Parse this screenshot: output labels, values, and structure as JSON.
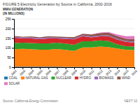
{
  "chart_data": {
    "type": "area",
    "stacked": true,
    "title": "FIGURE 5 Electricity Generation by Source in California, 2002-2016",
    "ylabel": [
      "MWH GENERATION",
      "(IN MILLIONS)"
    ],
    "x": [
      2002,
      2003,
      2004,
      2005,
      2006,
      2007,
      2008,
      2009,
      2010,
      2011,
      2012,
      2013,
      2014,
      2015,
      2016
    ],
    "series": [
      {
        "name": "COAL",
        "values": [
          3,
          3,
          3,
          3,
          3,
          2.5,
          2,
          2,
          2,
          2,
          2,
          2,
          2,
          1,
          1
        ]
      },
      {
        "name": "NATURAL GAS",
        "values": [
          90,
          92,
          90,
          88,
          88,
          92,
          88,
          82,
          100,
          100,
          105,
          102,
          95,
          90,
          88
        ]
      },
      {
        "name": "NUCLEAR",
        "values": [
          32,
          32,
          32,
          32,
          32,
          32,
          32,
          32,
          32,
          32,
          32,
          32,
          22,
          18,
          18
        ]
      },
      {
        "name": "HYDRO",
        "values": [
          28,
          22,
          24,
          22,
          26,
          22,
          24,
          28,
          26,
          20,
          20,
          24,
          24,
          22,
          20
        ]
      },
      {
        "name": "BIOMASS",
        "values": [
          5,
          5,
          5,
          5,
          5,
          5,
          5,
          5,
          5,
          5,
          5,
          5,
          5,
          5,
          5
        ]
      },
      {
        "name": "WIND",
        "values": [
          4,
          4,
          5,
          5,
          6,
          5,
          6,
          7,
          8,
          10,
          13,
          13,
          13,
          12,
          13
        ]
      },
      {
        "name": "SOLAR",
        "values": [
          0,
          0,
          0,
          0,
          0,
          0,
          0,
          0,
          0,
          1,
          2,
          4,
          8,
          12,
          16
        ]
      }
    ],
    "xlim": [
      2002,
      2016
    ],
    "xticks": [
      2002,
      2003,
      2004,
      2005,
      2006,
      2007,
      2008,
      2009,
      2010,
      2011,
      2012,
      2013,
      2014,
      2015,
      2016
    ],
    "ylim": [
      0,
      250
    ],
    "yticks": [
      0,
      50,
      100,
      150,
      200,
      250
    ],
    "grid": true,
    "legend": "bottom",
    "annotations": [
      "Source: California Energy Commission",
      "NEXT 10"
    ]
  }
}
